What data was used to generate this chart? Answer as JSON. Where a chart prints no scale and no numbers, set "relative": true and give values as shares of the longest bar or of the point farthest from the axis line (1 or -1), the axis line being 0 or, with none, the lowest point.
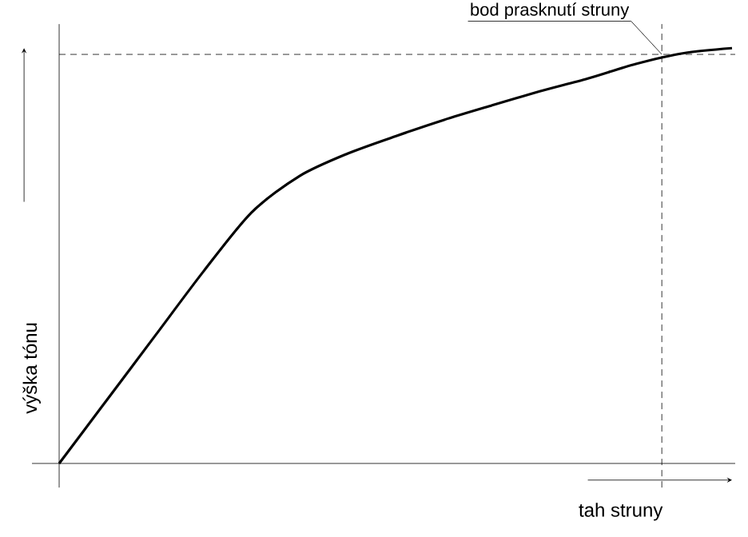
{
  "chart_data": {
    "type": "line",
    "relative": true,
    "xlabel": "tah struny",
    "ylabel": "výška tónu",
    "categories": [
      null,
      null,
      null,
      null,
      null,
      null,
      null,
      null,
      null,
      null,
      null,
      null,
      null,
      null,
      null
    ],
    "series": [
      {
        "color": "#000000",
        "values": [
          0,
          0.154,
          0.308,
          0.462,
          0.604,
          0.692,
          0.746,
          0.788,
          0.827,
          0.862,
          0.896,
          0.927,
          0.962,
          0.988,
          1
        ]
      }
    ],
    "ref_lines": [
      {
        "axis": "y",
        "value": 0.985,
        "line_style": "dashed"
      }
    ],
    "annotations": [
      "bod prasknutí struny"
    ]
  }
}
